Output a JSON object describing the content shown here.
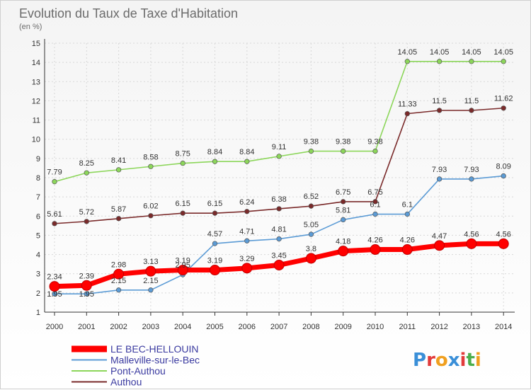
{
  "chart_data": {
    "type": "line",
    "title": "Evolution du Taux de Taxe d'Habitation",
    "subtitle": "(en %)",
    "x": [
      "2000",
      "2001",
      "2002",
      "2003",
      "2004",
      "2005",
      "2006",
      "2007",
      "2008",
      "2009",
      "2010",
      "2011",
      "2012",
      "2013",
      "2014"
    ],
    "ylim": [
      1,
      15
    ],
    "yticks": [
      1,
      2,
      3,
      4,
      5,
      6,
      7,
      8,
      9,
      10,
      11,
      12,
      13,
      14,
      15
    ],
    "grid": true,
    "legend_position": "bottom-left",
    "series": [
      {
        "name": "LE BEC-HELLOUIN",
        "color": "#ff0000",
        "values": [
          2.34,
          2.39,
          2.98,
          3.13,
          3.19,
          3.19,
          3.29,
          3.45,
          3.8,
          4.18,
          4.26,
          4.26,
          4.47,
          4.56,
          4.56
        ],
        "labels": [
          "2.34",
          "2.39",
          "2.98",
          "3.13",
          "3.19",
          "3.19",
          "3.29",
          "3.45",
          "3.8",
          "4.18",
          "4.26",
          "4.26",
          "4.47",
          "4.56",
          "4.56"
        ]
      },
      {
        "name": "Malleville-sur-le-Bec",
        "color": "#5b9bd5",
        "values": [
          1.95,
          1.95,
          2.15,
          2.15,
          2.95,
          4.57,
          4.71,
          4.81,
          5.05,
          5.81,
          6.1,
          6.1,
          7.93,
          7.93,
          8.09
        ],
        "labels": [
          "1.95",
          "1.95",
          "2.15",
          "2.15",
          "2.95",
          "4.57",
          "4.71",
          "4.81",
          "5.05",
          "5.81",
          "6.1",
          "6.1",
          "7.93",
          "7.93",
          "8.09"
        ]
      },
      {
        "name": "Pont-Authou",
        "color": "#8cd65a",
        "values": [
          7.79,
          8.25,
          8.41,
          8.58,
          8.75,
          8.84,
          8.84,
          9.11,
          9.38,
          9.38,
          9.38,
          14.05,
          14.05,
          14.05,
          14.05
        ],
        "labels": [
          "7.79",
          "8.25",
          "8.41",
          "8.58",
          "8.75",
          "8.84",
          "8.84",
          "9.11",
          "9.38",
          "9.38",
          "9.38",
          "14.05",
          "14.05",
          "14.05",
          "14.05"
        ]
      },
      {
        "name": "Authou",
        "color": "#7a2a2a",
        "values": [
          5.61,
          5.72,
          5.87,
          6.02,
          6.15,
          6.15,
          6.24,
          6.38,
          6.52,
          6.75,
          6.75,
          11.33,
          11.5,
          11.5,
          11.62
        ],
        "labels": [
          "5.61",
          "5.72",
          "5.87",
          "6.02",
          "6.15",
          "6.15",
          "6.24",
          "6.38",
          "6.52",
          "6.75",
          "6.75",
          "11.33",
          "11.5",
          "11.5",
          "11.62"
        ]
      }
    ]
  },
  "logo": {
    "letters": [
      "P",
      "r",
      "o",
      "x",
      "i",
      "t",
      "i"
    ],
    "colors": [
      "#3a8fd8",
      "#e23b3b",
      "#f0a020",
      "#3a8fd8",
      "#e23b3b",
      "#4cae4c",
      "#f0a020"
    ]
  }
}
